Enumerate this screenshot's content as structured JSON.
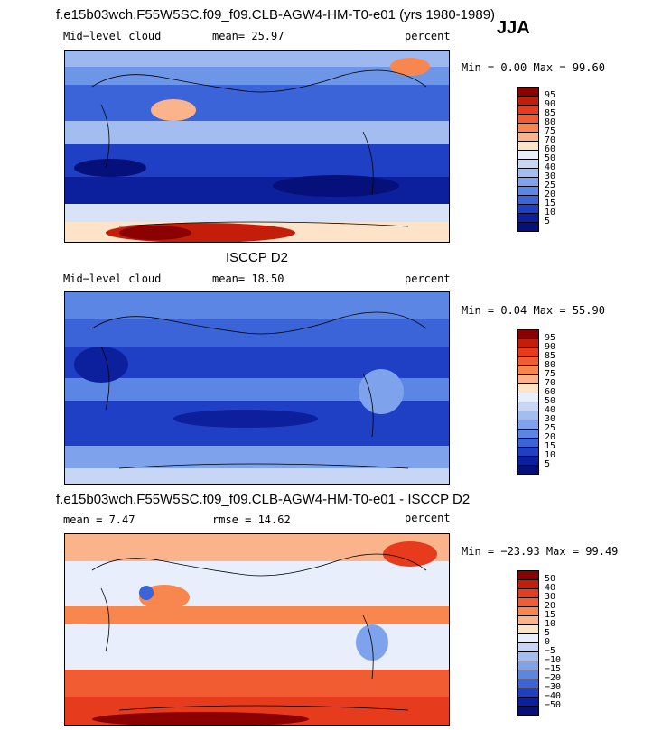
{
  "season": "JJA",
  "panels": [
    {
      "title": "f.e15b03wch.F55W5SC.f09_f09.CLB-AGW4-HM-T0-e01 (yrs 1980-1989)",
      "left_label": "Mid−level cloud",
      "mid_label": "mean=  25.97",
      "units": "percent",
      "minmax": "Min =   0.00 Max =  99.60",
      "colorbar": {
        "labels": [
          "95",
          "90",
          "85",
          "80",
          "75",
          "70",
          "60",
          "50",
          "40",
          "30",
          "25",
          "20",
          "15",
          "10",
          "5"
        ],
        "colors": [
          "#8b0000",
          "#c41d0a",
          "#e63b1c",
          "#f25c33",
          "#f7874f",
          "#fab38a",
          "#fde3c8",
          "#e8eefb",
          "#c6d6f4",
          "#a3bdf0",
          "#7ea3ec",
          "#5b86e4",
          "#3a64d8",
          "#1f3fc4",
          "#0c1f9c",
          "#06107a"
        ]
      }
    },
    {
      "title": "ISCCP D2",
      "left_label": "Mid−level cloud",
      "mid_label": "mean=  18.50",
      "units": "percent",
      "minmax": "Min =   0.04 Max =  55.90",
      "colorbar": {
        "labels": [
          "95",
          "90",
          "85",
          "80",
          "75",
          "70",
          "60",
          "50",
          "40",
          "30",
          "25",
          "20",
          "15",
          "10",
          "5"
        ],
        "colors": [
          "#8b0000",
          "#c41d0a",
          "#e63b1c",
          "#f25c33",
          "#f7874f",
          "#fab38a",
          "#fde3c8",
          "#e8eefb",
          "#c6d6f4",
          "#a3bdf0",
          "#7ea3ec",
          "#5b86e4",
          "#3a64d8",
          "#1f3fc4",
          "#0c1f9c",
          "#06107a"
        ]
      }
    },
    {
      "title": "f.e15b03wch.F55W5SC.f09_f09.CLB-AGW4-HM-T0-e01 - ISCCP D2",
      "left_label": "mean =   7.47",
      "mid_label": "rmse =  14.62",
      "units": "percent",
      "minmax": "Min = −23.93 Max =  99.49",
      "colorbar": {
        "labels": [
          "50",
          "40",
          "30",
          "20",
          "15",
          "10",
          "5",
          "0",
          "−5",
          "−10",
          "−15",
          "−20",
          "−30",
          "−40",
          "−50"
        ],
        "colors": [
          "#8b0000",
          "#c41d0a",
          "#e63b1c",
          "#f25c33",
          "#f7874f",
          "#fab38a",
          "#fde3c8",
          "#e8eefb",
          "#c6d6f4",
          "#a3bdf0",
          "#7ea3ec",
          "#5b86e4",
          "#3a64d8",
          "#1f3fc4",
          "#0c1f9c",
          "#06107a"
        ]
      }
    }
  ]
}
